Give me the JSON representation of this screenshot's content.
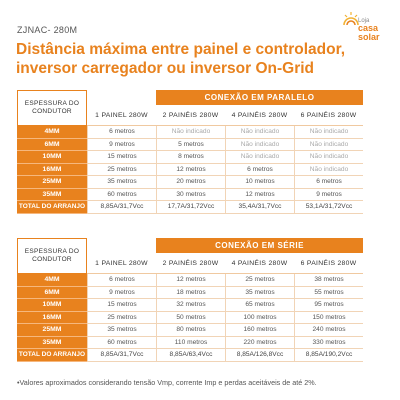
{
  "product_code": "ZJNAC- 280M",
  "logo": {
    "top": "Loja",
    "line1": "casa",
    "line2": "solar"
  },
  "title_line1": "Distância máxima entre painel e controlador,",
  "title_line2": "inversor carregador ou inversor On-Grid",
  "table1": {
    "group_header": "CONEXÃO EM PARALELO",
    "corner_label_1": "ESPESSURA DO",
    "corner_label_2": "CONDUTOR",
    "columns": [
      "1 PAINEL 280W",
      "2 PAINÉIS 280W",
      "4 PAINÉIS 280W",
      "6 PAINÉIS 280W"
    ],
    "rows": [
      {
        "label": "4MM",
        "cells": [
          "6 metros",
          "Não indicado",
          "Não indicado",
          "Não indicado"
        ]
      },
      {
        "label": "6MM",
        "cells": [
          "9 metros",
          "5 metros",
          "Não indicado",
          "Não indicado"
        ]
      },
      {
        "label": "10MM",
        "cells": [
          "15 metros",
          "8 metros",
          "Não indicado",
          "Não indicado"
        ]
      },
      {
        "label": "16MM",
        "cells": [
          "25 metros",
          "12 metros",
          "6 metros",
          "Não indicado"
        ]
      },
      {
        "label": "25MM",
        "cells": [
          "35 metros",
          "20 metros",
          "10 metros",
          "6 metros"
        ]
      },
      {
        "label": "35MM",
        "cells": [
          "60 metros",
          "30 metros",
          "12 metros",
          "9 metros"
        ]
      }
    ],
    "total": {
      "label": "TOTAL DO ARRANJO",
      "cells": [
        "8,85A/31,7Vcc",
        "17,7A/31,72Vcc",
        "35,4A/31,7Vcc",
        "53,1A/31,72Vcc"
      ]
    }
  },
  "table2": {
    "group_header": "CONEXÃO EM SÉRIE",
    "corner_label_1": "ESPESSURA DO",
    "corner_label_2": "CONDUTOR",
    "columns": [
      "1 PAINEL 280W",
      "2 PAINÉIS 280W",
      "4 PAINÉIS 280W",
      "6 PAINÉIS 280W"
    ],
    "rows": [
      {
        "label": "4MM",
        "cells": [
          "6 metros",
          "12 metros",
          "25 metros",
          "38 metros"
        ]
      },
      {
        "label": "6MM",
        "cells": [
          "9 metros",
          "18 metros",
          "35 metros",
          "55 metros"
        ]
      },
      {
        "label": "10MM",
        "cells": [
          "15 metros",
          "32 metros",
          "65 metros",
          "95 metros"
        ]
      },
      {
        "label": "16MM",
        "cells": [
          "25 metros",
          "50 metros",
          "100 metros",
          "150 metros"
        ]
      },
      {
        "label": "25MM",
        "cells": [
          "35 metros",
          "80 metros",
          "160 metros",
          "240 metros"
        ]
      },
      {
        "label": "35MM",
        "cells": [
          "60 metros",
          "110 metros",
          "220 metros",
          "330 metros"
        ]
      }
    ],
    "total": {
      "label": "TOTAL DO ARRANJO",
      "cells": [
        "8,85A/31,7Vcc",
        "8,85A/63,4Vcc",
        "8,85A/126,8Vcc",
        "8,85A/190,2Vcc"
      ]
    }
  },
  "footnote": "•Valores aproximados considerando tensão Vmp, corrente Imp e perdas aceitáveis de até 2%.",
  "colors": {
    "accent": "#e8821e",
    "text": "#333333"
  }
}
